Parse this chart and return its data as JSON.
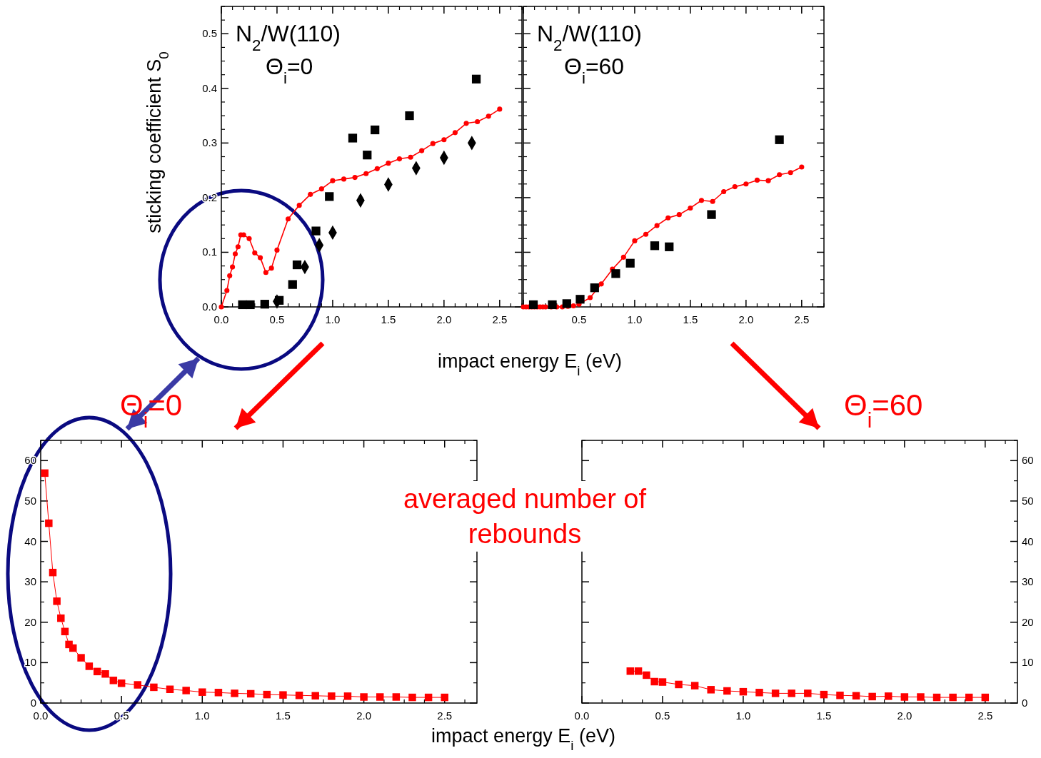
{
  "chart_data": [
    {
      "type": "line",
      "ylabel": "sticking coefficient S$_{0}$",
      "xlabel": "impact energy E$_{i}$ (eV)",
      "annotations": [
        "N$_{2}$/W(110)",
        "Θ$_{i}$=0"
      ],
      "xlim": [
        0,
        2.7
      ],
      "xticks": [
        {
          "value": 0,
          "label": "0.0"
        },
        {
          "value": 0.5,
          "label": "0.5"
        },
        {
          "value": 1,
          "label": "1.0"
        },
        {
          "value": 1.5,
          "label": "1.5"
        },
        {
          "value": 2,
          "label": "2.0"
        },
        {
          "value": 2.5,
          "label": "2.5"
        }
      ],
      "ylim": [
        0,
        0.55
      ],
      "yticks": [
        {
          "value": 0,
          "label": "0.0"
        },
        {
          "value": 0.1,
          "label": "0.1"
        },
        {
          "value": 0.2,
          "label": "0.2"
        },
        {
          "value": 0.3,
          "label": "0.3"
        },
        {
          "value": 0.4,
          "label": "0.4"
        },
        {
          "value": 0.5,
          "label": "0.5"
        }
      ],
      "grid": false,
      "series": [
        {
          "color": "#ff0000",
          "marker": "circle",
          "x": [
            0,
            0.05,
            0.075,
            0.1,
            0.125,
            0.15,
            0.175,
            0.2,
            0.25,
            0.3,
            0.35,
            0.4,
            0.45,
            0.5,
            0.6,
            0.7,
            0.8,
            0.9,
            1.0,
            1.1,
            1.2,
            1.3,
            1.4,
            1.5,
            1.6,
            1.7,
            1.8,
            1.9,
            2.0,
            2.1,
            2.2,
            2.3,
            2.4,
            2.5
          ],
          "values": [
            0,
            0.03,
            0.057,
            0.073,
            0.097,
            0.11,
            0.132,
            0.132,
            0.125,
            0.099,
            0.09,
            0.063,
            0.071,
            0.104,
            0.161,
            0.186,
            0.206,
            0.216,
            0.231,
            0.234,
            0.237,
            0.244,
            0.253,
            0.263,
            0.271,
            0.274,
            0.286,
            0.299,
            0.306,
            0.319,
            0.336,
            0.339,
            0.349,
            0.362
          ]
        },
        {
          "type": "scatter",
          "color": "#000000",
          "marker": "square",
          "x": [
            0.19,
            0.26,
            0.39,
            0.52,
            0.64,
            0.68,
            0.85,
            0.97,
            1.18,
            1.31,
            1.38,
            1.69,
            2.29
          ],
          "values": [
            0.004,
            0.004,
            0.005,
            0.012,
            0.041,
            0.077,
            0.139,
            0.202,
            0.309,
            0.278,
            0.324,
            0.35,
            0.417
          ]
        },
        {
          "type": "scatter",
          "color": "#000000",
          "marker": "diamond",
          "x": [
            0.5,
            0.75,
            0.88,
            1.0,
            1.25,
            1.5,
            1.75,
            2.0,
            2.25
          ],
          "values": [
            0.01,
            0.073,
            0.113,
            0.136,
            0.195,
            0.224,
            0.254,
            0.273,
            0.3
          ]
        }
      ]
    },
    {
      "type": "line",
      "annotations": [
        "N$_{2}$/W(110)",
        "Θ$_{i}$=60"
      ],
      "xlim": [
        0,
        2.7
      ],
      "xticks": [
        {
          "value": 0,
          "label": null
        },
        {
          "value": 0.5,
          "label": "0.5"
        },
        {
          "value": 1,
          "label": "1.0"
        },
        {
          "value": 1.5,
          "label": "1.5"
        },
        {
          "value": 2,
          "label": "2.0"
        },
        {
          "value": 2.5,
          "label": "2.5"
        }
      ],
      "ylim": [
        0,
        0.55
      ],
      "yticks": [
        0,
        0.1,
        0.2,
        0.3,
        0.4,
        0.5
      ],
      "tick_labels": "x",
      "grid": false,
      "series": [
        {
          "color": "#ff0000",
          "marker": "circle",
          "x": [
            0,
            0.025,
            0.05,
            0.075,
            0.1,
            0.125,
            0.15,
            0.175,
            0.2,
            0.25,
            0.3,
            0.35,
            0.4,
            0.45,
            0.5,
            0.6,
            0.7,
            0.8,
            0.9,
            1.0,
            1.1,
            1.2,
            1.3,
            1.4,
            1.5,
            1.6,
            1.7,
            1.8,
            1.9,
            2.0,
            2.1,
            2.2,
            2.3,
            2.4,
            2.5
          ],
          "values": [
            0,
            0,
            0,
            0,
            0,
            0,
            0,
            0,
            0,
            0,
            0,
            0,
            0.001,
            0.002,
            0.005,
            0.017,
            0.042,
            0.069,
            0.091,
            0.121,
            0.133,
            0.149,
            0.163,
            0.169,
            0.181,
            0.195,
            0.193,
            0.211,
            0.22,
            0.225,
            0.232,
            0.231,
            0.242,
            0.246,
            0.256
          ]
        },
        {
          "type": "scatter",
          "color": "#000000",
          "marker": "square",
          "x": [
            0.09,
            0.26,
            0.39,
            0.51,
            0.64,
            0.83,
            0.96,
            1.18,
            1.31,
            1.69,
            2.3
          ],
          "values": [
            0.004,
            0.004,
            0.006,
            0.014,
            0.035,
            0.061,
            0.08,
            0.112,
            0.11,
            0.169,
            0.306
          ]
        }
      ]
    },
    {
      "type": "line",
      "xlabel": "impact energy E$_{i}$ (eV)",
      "annotations": [
        "Θ$_{i}$=0",
        "averaged number of rebounds"
      ],
      "xlim": [
        0,
        2.7
      ],
      "xticks": [
        {
          "value": 0,
          "label": "0.0"
        },
        {
          "value": 0.5,
          "label": "0.5"
        },
        {
          "value": 1,
          "label": "1.0"
        },
        {
          "value": 1.5,
          "label": "1.5"
        },
        {
          "value": 2,
          "label": "2.0"
        },
        {
          "value": 2.5,
          "label": "2.5"
        }
      ],
      "ylim": [
        0,
        65
      ],
      "yticks": [
        0,
        10,
        20,
        30,
        40,
        50,
        60
      ],
      "grid": false,
      "series": [
        {
          "color": "#ff0000",
          "marker": "square",
          "x": [
            0.025,
            0.05,
            0.075,
            0.1,
            0.125,
            0.15,
            0.175,
            0.2,
            0.25,
            0.3,
            0.35,
            0.4,
            0.45,
            0.5,
            0.6,
            0.7,
            0.8,
            0.9,
            1.0,
            1.1,
            1.2,
            1.3,
            1.4,
            1.5,
            1.6,
            1.7,
            1.8,
            1.9,
            2.0,
            2.1,
            2.2,
            2.3,
            2.4,
            2.5
          ],
          "values": [
            56.9,
            44.5,
            32.3,
            25.2,
            21.0,
            17.7,
            14.5,
            13.6,
            11.2,
            9.1,
            7.8,
            7.2,
            5.6,
            4.9,
            4.5,
            3.9,
            3.4,
            3.1,
            2.7,
            2.6,
            2.4,
            2.3,
            2.1,
            2.0,
            1.9,
            1.8,
            1.7,
            1.7,
            1.5,
            1.5,
            1.5,
            1.4,
            1.4,
            1.4
          ]
        }
      ]
    },
    {
      "type": "line",
      "annotations": [
        "Θ$_{i}$=60"
      ],
      "xlim": [
        0,
        2.7
      ],
      "xticks": [
        {
          "value": 0,
          "label": "0.0"
        },
        {
          "value": 0.5,
          "label": "0.5"
        },
        {
          "value": 1,
          "label": "1.0"
        },
        {
          "value": 1.5,
          "label": "1.5"
        },
        {
          "value": 2,
          "label": "2.0"
        },
        {
          "value": 2.5,
          "label": "2.5"
        }
      ],
      "y2lim": [
        0,
        65
      ],
      "y2ticks": [
        0,
        10,
        20,
        30,
        40,
        50,
        60
      ],
      "grid": false,
      "series": [
        {
          "axis": "y2",
          "color": "#ff0000",
          "marker": "square",
          "x": [
            0.3,
            0.35,
            0.4,
            0.45,
            0.5,
            0.6,
            0.7,
            0.8,
            0.9,
            1.0,
            1.1,
            1.2,
            1.3,
            1.4,
            1.5,
            1.6,
            1.7,
            1.8,
            1.9,
            2.0,
            2.1,
            2.2,
            2.3,
            2.4,
            2.5
          ],
          "values": [
            7.9,
            7.9,
            6.9,
            5.3,
            5.2,
            4.6,
            4.3,
            3.3,
            3.0,
            2.8,
            2.6,
            2.4,
            2.4,
            2.4,
            2.1,
            1.9,
            1.8,
            1.6,
            1.7,
            1.5,
            1.5,
            1.4,
            1.4,
            1.4,
            1.4
          ]
        }
      ]
    }
  ]
}
